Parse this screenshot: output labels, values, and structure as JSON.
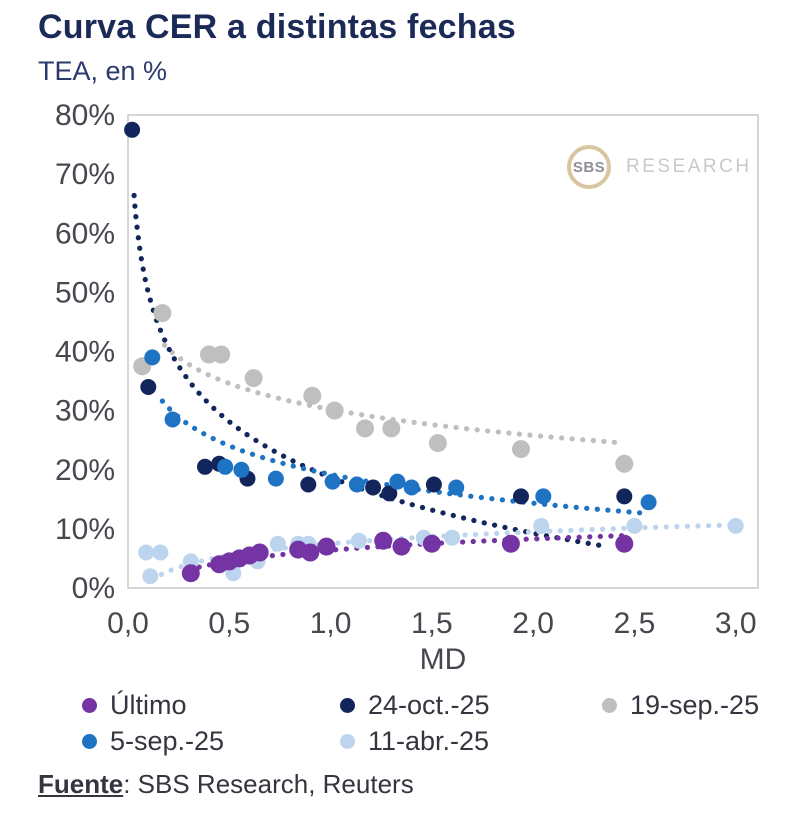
{
  "header": {
    "title": "Curva CER a distintas fechas",
    "subtitle": "TEA, en %"
  },
  "logo": {
    "abbr": "SBS",
    "name": "RESEARCH"
  },
  "footer": {
    "source_label": "Fuente",
    "source_text": ": SBS Research, Reuters"
  },
  "chart_data": {
    "type": "scatter",
    "title": "Curva CER a distintas fechas",
    "subtitle": "TEA, en %",
    "xlabel": "MD",
    "ylabel": "TEA, en %",
    "xlim": [
      0,
      3.11
    ],
    "ylim": [
      0,
      80
    ],
    "grid": false,
    "legend_position": "bottom",
    "xticks": {
      "values": [
        0,
        0.5,
        1.0,
        1.5,
        2.0,
        2.5,
        3.0
      ],
      "labels": [
        "0,0",
        "0,5",
        "1,0",
        "1,5",
        "2,0",
        "2,5",
        "3,0"
      ]
    },
    "yticks": {
      "values": [
        0,
        10,
        20,
        30,
        40,
        50,
        60,
        70,
        80
      ],
      "labels": [
        "0%",
        "10%",
        "20%",
        "30%",
        "40%",
        "50%",
        "60%",
        "70%",
        "80%"
      ]
    },
    "draw_order": [
      2,
      1,
      3,
      4,
      0
    ],
    "series": [
      {
        "name": "Último",
        "color": "#7434a4",
        "marker_radius": 9,
        "points": [
          [
            0.31,
            2.5
          ],
          [
            0.45,
            4
          ],
          [
            0.5,
            4.5
          ],
          [
            0.55,
            5
          ],
          [
            0.6,
            5.5
          ],
          [
            0.65,
            6
          ],
          [
            0.84,
            6.5
          ],
          [
            0.9,
            6
          ],
          [
            0.98,
            7
          ],
          [
            1.26,
            8
          ],
          [
            1.35,
            7
          ],
          [
            1.5,
            7.5
          ],
          [
            1.89,
            7.5
          ],
          [
            2.45,
            7.5
          ]
        ],
        "trendline": {
          "fit": "log",
          "formula": "y = a + b*ln(x)",
          "a": 6.4,
          "b": 2.74,
          "x_range": [
            0.3,
            2.45
          ]
        }
      },
      {
        "name": "24-oct.-25",
        "color": "#12265c",
        "marker_radius": 8,
        "points": [
          [
            0.02,
            77.5
          ],
          [
            0.1,
            34
          ],
          [
            0.38,
            20.5
          ],
          [
            0.45,
            21
          ],
          [
            0.59,
            18.5
          ],
          [
            0.89,
            17.5
          ],
          [
            1.21,
            17
          ],
          [
            1.29,
            16
          ],
          [
            1.51,
            17.5
          ],
          [
            1.94,
            15.5
          ],
          [
            2.45,
            15.5
          ]
        ],
        "trendline": {
          "fit": "log",
          "formula": "y = a + b*ln(x)",
          "a": 18.7,
          "b": -13.6,
          "x_range": [
            0.03,
            2.35
          ]
        }
      },
      {
        "name": "19-sep.-25",
        "color": "#bfbfbf",
        "marker_radius": 9,
        "points": [
          [
            0.07,
            37.5
          ],
          [
            0.17,
            46.5
          ],
          [
            0.4,
            39.5
          ],
          [
            0.46,
            39.5
          ],
          [
            0.62,
            35.5
          ],
          [
            0.91,
            32.5
          ],
          [
            1.02,
            30
          ],
          [
            1.17,
            27
          ],
          [
            1.3,
            27
          ],
          [
            1.53,
            24.5
          ],
          [
            1.94,
            23.5
          ],
          [
            2.45,
            21
          ]
        ],
        "trendline": {
          "fit": "log",
          "formula": "y = a + b*ln(x)",
          "a": 30.2,
          "b": -6.34,
          "x_range": [
            0.18,
            2.42
          ]
        }
      },
      {
        "name": "5-sep.-25",
        "color": "#1e73c2",
        "marker_radius": 8,
        "points": [
          [
            0.12,
            39
          ],
          [
            0.22,
            28.5
          ],
          [
            0.48,
            20.5
          ],
          [
            0.56,
            20
          ],
          [
            0.73,
            18.5
          ],
          [
            1.01,
            18
          ],
          [
            1.13,
            17.5
          ],
          [
            1.33,
            18
          ],
          [
            1.4,
            17
          ],
          [
            1.62,
            17
          ],
          [
            2.05,
            15.5
          ],
          [
            2.57,
            14.5
          ]
        ],
        "trendline": {
          "fit": "log",
          "formula": "y = a + b*ln(x)",
          "a": 19.2,
          "b": -7.0,
          "x_range": [
            0.17,
            2.57
          ]
        }
      },
      {
        "name": "11-abr.-25",
        "color": "#bcd4ee",
        "marker_radius": 8,
        "points": [
          [
            0.09,
            6
          ],
          [
            0.11,
            2
          ],
          [
            0.16,
            6
          ],
          [
            0.31,
            4.5
          ],
          [
            0.52,
            2.5
          ],
          [
            0.64,
            4.5
          ],
          [
            0.74,
            7.5
          ],
          [
            0.84,
            7.5
          ],
          [
            0.89,
            7.5
          ],
          [
            1.14,
            8
          ],
          [
            1.46,
            8.5
          ],
          [
            1.6,
            8.5
          ],
          [
            2.04,
            10.5
          ],
          [
            2.5,
            10.5
          ],
          [
            3.0,
            10.5
          ]
        ],
        "trendline": {
          "fit": "log",
          "formula": "y = a + b*ln(x)",
          "a": 7.5,
          "b": 2.89,
          "x_range": [
            0.12,
            3.02
          ]
        }
      }
    ]
  }
}
